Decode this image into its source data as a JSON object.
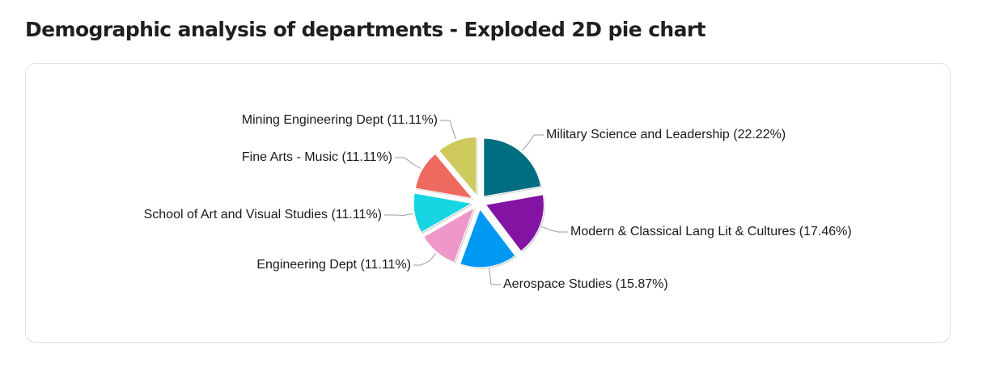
{
  "page": {
    "title": "Demographic analysis of departments - Exploded 2D pie chart"
  },
  "chart_data": {
    "type": "pie",
    "exploded": true,
    "title": "",
    "slices": [
      {
        "label": "Military Science and Leadership",
        "percent": 22.22,
        "display": "Military Science and Leadership (22.22%)",
        "color": "#006d80"
      },
      {
        "label": "Modern & Classical Lang Lit & Cultures",
        "percent": 17.46,
        "display": "Modern & Classical Lang Lit & Cultures (17.46%)",
        "color": "#8314a3"
      },
      {
        "label": "Aerospace Studies",
        "percent": 15.87,
        "display": "Aerospace Studies (15.87%)",
        "color": "#0099f2"
      },
      {
        "label": "Engineering Dept",
        "percent": 11.11,
        "display": "Engineering Dept (11.11%)",
        "color": "#f097c9"
      },
      {
        "label": "School of Art and Visual Studies",
        "percent": 11.11,
        "display": "School of Art and Visual Studies (11.11%)",
        "color": "#17d5e2"
      },
      {
        "label": "Fine Arts -  Music",
        "percent": 11.11,
        "display": "Fine Arts -  Music (11.11%)",
        "color": "#ef6a5e"
      },
      {
        "label": "Mining Engineering Dept",
        "percent": 11.11,
        "display": "Mining Engineering Dept (11.11%)",
        "color": "#cdc95d"
      }
    ]
  }
}
